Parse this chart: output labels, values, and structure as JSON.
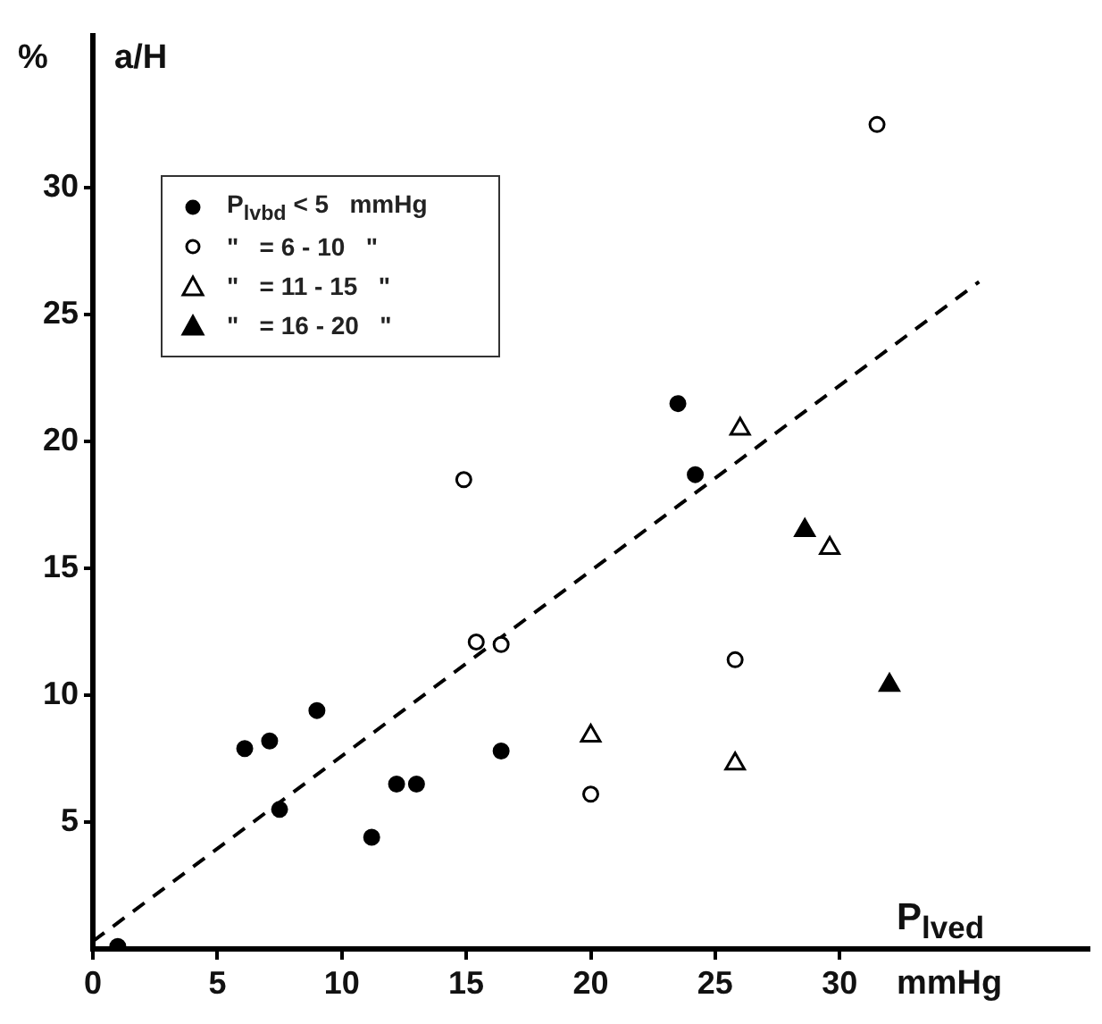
{
  "chart_data": {
    "type": "scatter",
    "xlabel": "P$_{lved}$",
    "ylabel": "a/H",
    "annotations": [
      "%",
      "mmHg"
    ],
    "xlim": [
      0,
      40
    ],
    "ylim": [
      0,
      36
    ],
    "xticks": [
      0,
      5,
      10,
      15,
      20,
      25,
      30
    ],
    "yticks": [
      5,
      10,
      15,
      20,
      25,
      30
    ],
    "grid": false,
    "legend": "top left",
    "series": [
      {
        "name": "P$_{lvbd}$ < 5   mmHg",
        "color": "#000000",
        "marker": "circle",
        "x": [
          1,
          6.1,
          7.1,
          9,
          7.5,
          11.2,
          12.2,
          13,
          16.4,
          23.5,
          24.2
        ],
        "values": [
          0.1,
          7.9,
          8.2,
          9.4,
          5.5,
          4.4,
          6.5,
          6.5,
          7.8,
          21.5,
          18.7
        ]
      },
      {
        "name": "\"   = 6 - 10   \"",
        "color": "#ffffff",
        "marker": "circle",
        "x": [
          14.9,
          15.4,
          16.4,
          20,
          25.8,
          31.5
        ],
        "values": [
          18.5,
          12.1,
          12,
          6.1,
          11.4,
          32.5
        ]
      },
      {
        "name": "\"   = 11 - 15   \"",
        "color": "#ffffff",
        "marker": "triangle",
        "x": [
          20,
          26,
          29.6,
          25.8
        ],
        "values": [
          8.4,
          20.5,
          15.8,
          7.3
        ]
      },
      {
        "name": "\"   = 16 - 20   \"",
        "color": "#000000",
        "marker": "triangle",
        "x": [
          28.6,
          32
        ],
        "values": [
          16.5,
          10.4
        ]
      },
      {
        "type": "line",
        "color": "#000000",
        "line_style": "dashed",
        "marker": "none",
        "x": [
          0,
          35.6
        ],
        "values": [
          0.3,
          26.3
        ]
      }
    ]
  }
}
